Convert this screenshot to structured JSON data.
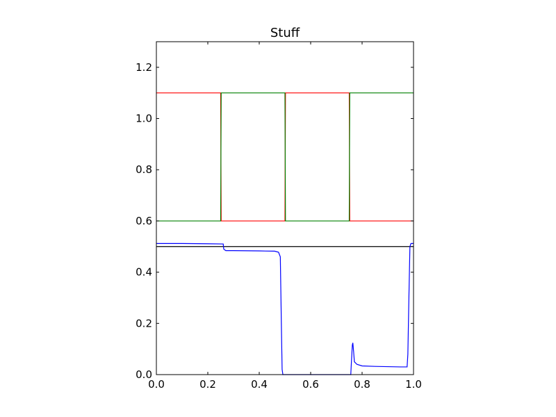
{
  "chart_data": {
    "type": "line",
    "title": "Stuff",
    "xlabel": "",
    "ylabel": "",
    "xlim": [
      0.0,
      1.0
    ],
    "ylim": [
      0.0,
      1.3
    ],
    "grid": false,
    "x_ticks": [
      "0.0",
      "0.2",
      "0.4",
      "0.6",
      "0.8",
      "1.0"
    ],
    "y_ticks": [
      "0.0",
      "0.2",
      "0.4",
      "0.6",
      "0.8",
      "1.0",
      "1.2"
    ],
    "y_tick_values": [
      0.0,
      0.2,
      0.4,
      0.6,
      0.8,
      1.0,
      1.2
    ],
    "series": [
      {
        "color": "#ff0000",
        "x": [
          0.0,
          0.25,
          0.252,
          0.5,
          0.502,
          0.75,
          0.752,
          1.0
        ],
        "y": [
          1.1,
          1.1,
          0.6,
          0.6,
          1.1,
          1.1,
          0.6,
          0.6
        ]
      },
      {
        "color": "#008000",
        "x": [
          0.0,
          0.25,
          0.252,
          0.5,
          0.502,
          0.75,
          0.752,
          1.0
        ],
        "y": [
          0.6,
          0.6,
          1.1,
          1.1,
          0.6,
          0.6,
          1.1,
          1.1
        ]
      },
      {
        "color": "#000000",
        "x": [
          0.0,
          1.0
        ],
        "y": [
          0.5,
          0.5
        ]
      },
      {
        "color": "#0000ff",
        "x": [
          0.0,
          0.1,
          0.2,
          0.26,
          0.262,
          0.27,
          0.3,
          0.4,
          0.46,
          0.475,
          0.482,
          0.486,
          0.489,
          0.492,
          0.5,
          0.6,
          0.7,
          0.756,
          0.758,
          0.762,
          0.764,
          0.767,
          0.77,
          0.78,
          0.8,
          0.85,
          0.9,
          0.95,
          0.975,
          0.978,
          0.982,
          0.986,
          0.99,
          1.0
        ],
        "y": [
          0.512,
          0.512,
          0.511,
          0.51,
          0.49,
          0.484,
          0.484,
          0.483,
          0.482,
          0.478,
          0.46,
          0.2,
          0.02,
          0.0,
          0.0,
          0.0,
          0.0,
          0.0,
          0.04,
          0.115,
          0.124,
          0.09,
          0.05,
          0.04,
          0.034,
          0.032,
          0.031,
          0.03,
          0.03,
          0.08,
          0.3,
          0.5,
          0.512,
          0.512
        ]
      }
    ]
  }
}
